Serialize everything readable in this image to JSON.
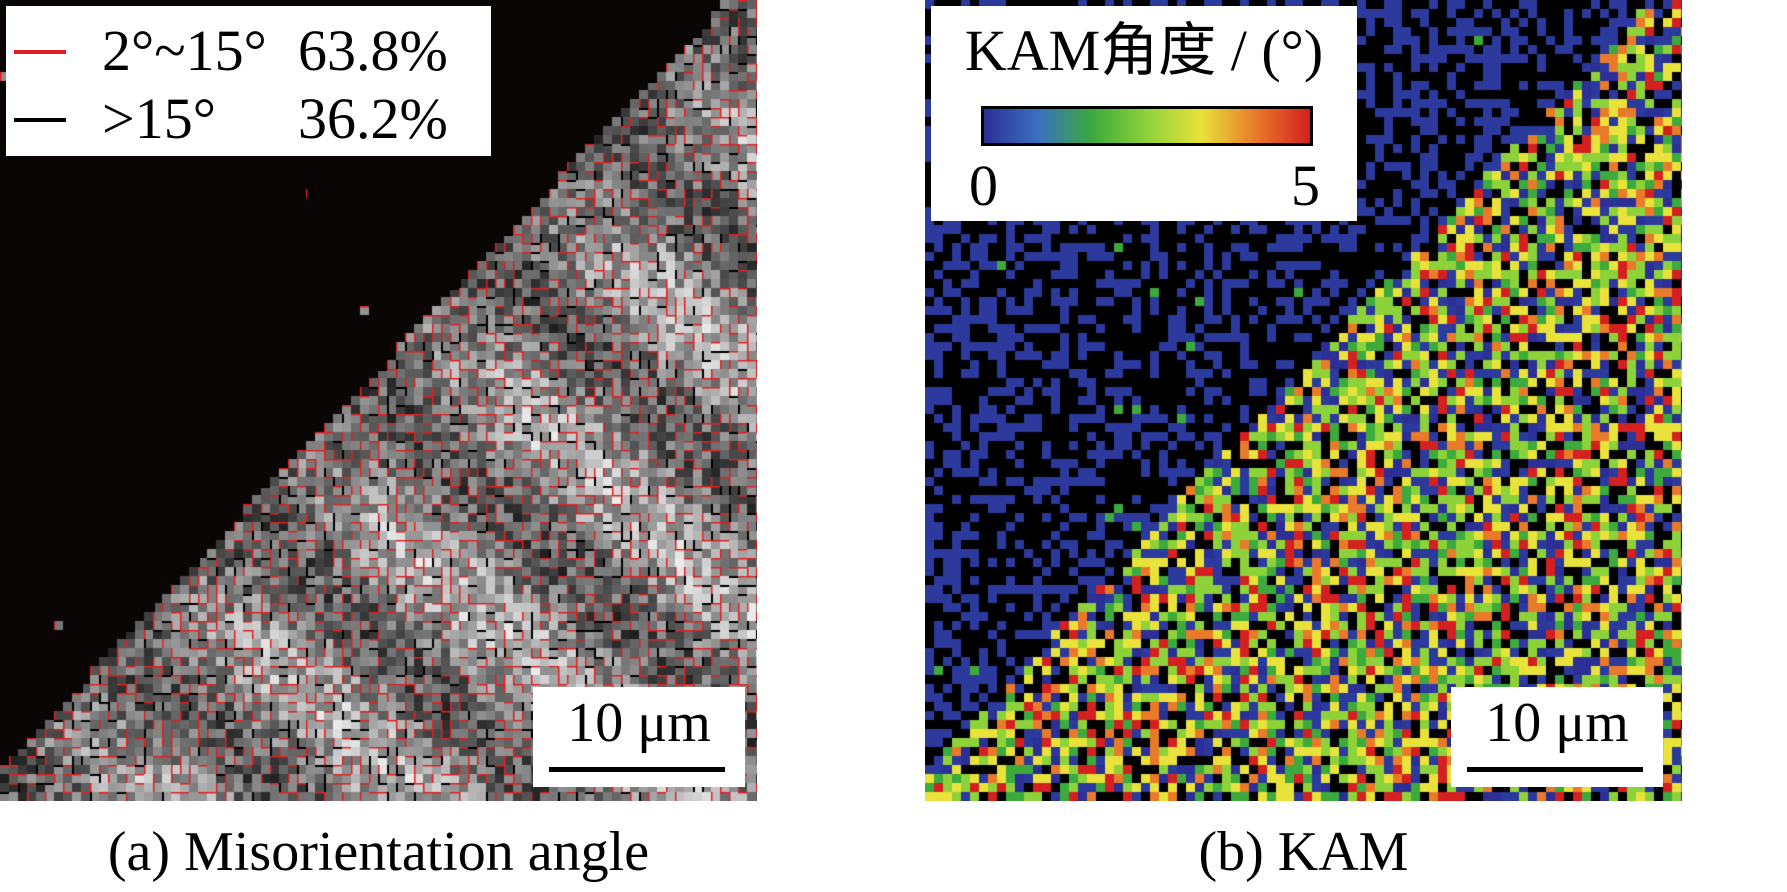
{
  "panel_a": {
    "legend": [
      {
        "label": "2°~15°",
        "value": "63.8%",
        "color": "#e02020"
      },
      {
        "label": ">15°",
        "value": "36.2%",
        "color": "#000000"
      }
    ],
    "scale_bar": "10 μm",
    "caption": "(a) Misorientation angle"
  },
  "panel_b": {
    "colorbar": {
      "title": "KAM角度 / (°)",
      "min": "0",
      "max": "5",
      "colors": [
        "#2b2f96",
        "#3a70c0",
        "#3caa3c",
        "#8ed23a",
        "#e8e23a",
        "#e87a2a",
        "#d42020"
      ]
    },
    "scale_bar": "10 μm",
    "caption": "(b) KAM"
  }
}
